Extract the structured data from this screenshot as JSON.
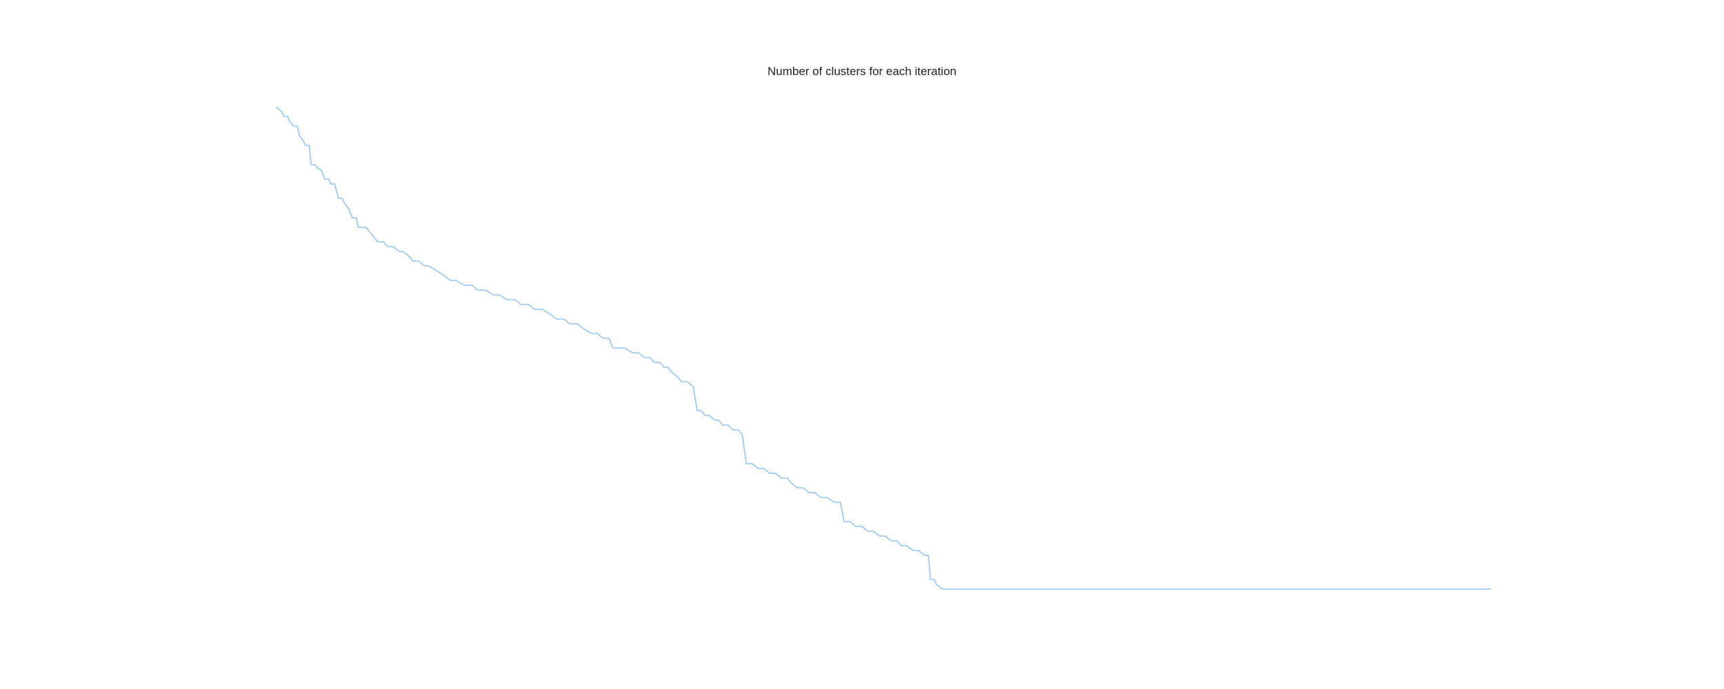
{
  "chart_data": {
    "type": "line",
    "title": "Number of clusters for each iteration",
    "xlabel": "",
    "ylabel": "",
    "axes_visible": false,
    "grid": false,
    "legend": "none",
    "series": [
      {
        "color": "#92c5f5",
        "points": [
          [
            0,
            100
          ],
          [
            3,
            99
          ],
          [
            4,
            98
          ],
          [
            6,
            98
          ],
          [
            7,
            97
          ],
          [
            9,
            96
          ],
          [
            11,
            96
          ],
          [
            12,
            94
          ],
          [
            14,
            93
          ],
          [
            15,
            92
          ],
          [
            17,
            92
          ],
          [
            18,
            88
          ],
          [
            20,
            88
          ],
          [
            22,
            87
          ],
          [
            23,
            87
          ],
          [
            25,
            85
          ],
          [
            27,
            85
          ],
          [
            28,
            84
          ],
          [
            30,
            84
          ],
          [
            32,
            81
          ],
          [
            34,
            81
          ],
          [
            35,
            80
          ],
          [
            37,
            79
          ],
          [
            39,
            77
          ],
          [
            41,
            77
          ],
          [
            42,
            75
          ],
          [
            44,
            75
          ],
          [
            46,
            75
          ],
          [
            48,
            74
          ],
          [
            50,
            73
          ],
          [
            52,
            72
          ],
          [
            55,
            72
          ],
          [
            57,
            71
          ],
          [
            60,
            71
          ],
          [
            63,
            70
          ],
          [
            65,
            70
          ],
          [
            68,
            69
          ],
          [
            70,
            68
          ],
          [
            73,
            68
          ],
          [
            76,
            67
          ],
          [
            78,
            67
          ],
          [
            82,
            66
          ],
          [
            86,
            65
          ],
          [
            89,
            64
          ],
          [
            92,
            64
          ],
          [
            96,
            63
          ],
          [
            100,
            63
          ],
          [
            103,
            62
          ],
          [
            107,
            62
          ],
          [
            111,
            61
          ],
          [
            114,
            61
          ],
          [
            118,
            60
          ],
          [
            122,
            60
          ],
          [
            125,
            59
          ],
          [
            129,
            59
          ],
          [
            132,
            58
          ],
          [
            136,
            58
          ],
          [
            140,
            57
          ],
          [
            143,
            56
          ],
          [
            147,
            56
          ],
          [
            150,
            55
          ],
          [
            154,
            55
          ],
          [
            157,
            54
          ],
          [
            161,
            53
          ],
          [
            164,
            53
          ],
          [
            167,
            52
          ],
          [
            170,
            52
          ],
          [
            172,
            50
          ],
          [
            175,
            50
          ],
          [
            178,
            50
          ],
          [
            182,
            49
          ],
          [
            185,
            49
          ],
          [
            188,
            48
          ],
          [
            191,
            48
          ],
          [
            193,
            47
          ],
          [
            196,
            47
          ],
          [
            198,
            46
          ],
          [
            200,
            46
          ],
          [
            202,
            45
          ],
          [
            205,
            44
          ],
          [
            207,
            43
          ],
          [
            210,
            43
          ],
          [
            213,
            42
          ],
          [
            215,
            37
          ],
          [
            217,
            37
          ],
          [
            219,
            36
          ],
          [
            221,
            36
          ],
          [
            224,
            35
          ],
          [
            226,
            35
          ],
          [
            228,
            34
          ],
          [
            231,
            34
          ],
          [
            233,
            33
          ],
          [
            236,
            33
          ],
          [
            238,
            32
          ],
          [
            240,
            26
          ],
          [
            243,
            26
          ],
          [
            246,
            25
          ],
          [
            249,
            25
          ],
          [
            252,
            24
          ],
          [
            255,
            24
          ],
          [
            258,
            23
          ],
          [
            261,
            23
          ],
          [
            263,
            22
          ],
          [
            266,
            21
          ],
          [
            269,
            21
          ],
          [
            272,
            20
          ],
          [
            275,
            20
          ],
          [
            278,
            19
          ],
          [
            281,
            19
          ],
          [
            285,
            18
          ],
          [
            288,
            18
          ],
          [
            290,
            14
          ],
          [
            293,
            14
          ],
          [
            296,
            13
          ],
          [
            299,
            13
          ],
          [
            302,
            12
          ],
          [
            305,
            12
          ],
          [
            308,
            11
          ],
          [
            311,
            11
          ],
          [
            314,
            10
          ],
          [
            317,
            10
          ],
          [
            319,
            9
          ],
          [
            322,
            9
          ],
          [
            325,
            8
          ],
          [
            328,
            8
          ],
          [
            331,
            7
          ],
          [
            333,
            7
          ],
          [
            334,
            2
          ],
          [
            336,
            2
          ],
          [
            337,
            1
          ],
          [
            340,
            0
          ],
          [
            345,
            0
          ],
          [
            350,
            0
          ],
          [
            360,
            0
          ],
          [
            380,
            0
          ],
          [
            400,
            0
          ],
          [
            420,
            0
          ],
          [
            440,
            0
          ],
          [
            460,
            0
          ],
          [
            480,
            0
          ],
          [
            500,
            0
          ],
          [
            520,
            0
          ],
          [
            540,
            0
          ],
          [
            560,
            0
          ],
          [
            580,
            0
          ],
          [
            600,
            0
          ],
          [
            620,
            0
          ]
        ]
      }
    ]
  }
}
